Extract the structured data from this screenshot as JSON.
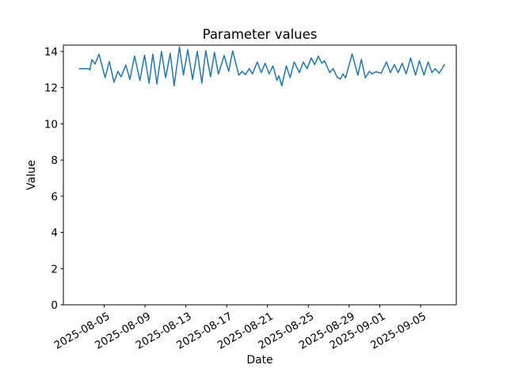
{
  "colors": {
    "background": "#ffffff",
    "axis": "#000000",
    "line": "#1f77b4"
  },
  "chart_data": {
    "type": "line",
    "title": "Parameter values",
    "xlabel": "Date",
    "ylabel": "Value",
    "x_unit": "days since 2025-08-01",
    "xlim": [
      0,
      38.5
    ],
    "ylim": [
      0,
      14.35
    ],
    "grid": false,
    "legend": false,
    "x_ticks": [
      {
        "pos": 4,
        "label": "2025-08-05"
      },
      {
        "pos": 8,
        "label": "2025-08-09"
      },
      {
        "pos": 12,
        "label": "2025-08-13"
      },
      {
        "pos": 16,
        "label": "2025-08-17"
      },
      {
        "pos": 20,
        "label": "2025-08-21"
      },
      {
        "pos": 24,
        "label": "2025-08-25"
      },
      {
        "pos": 28,
        "label": "2025-08-29"
      },
      {
        "pos": 31,
        "label": "2025-09-01"
      },
      {
        "pos": 35,
        "label": "2025-09-05"
      }
    ],
    "y_ticks": [
      {
        "pos": 0,
        "label": "0"
      },
      {
        "pos": 2,
        "label": "2"
      },
      {
        "pos": 4,
        "label": "4"
      },
      {
        "pos": 6,
        "label": "6"
      },
      {
        "pos": 8,
        "label": "8"
      },
      {
        "pos": 10,
        "label": "10"
      },
      {
        "pos": 12,
        "label": "12"
      },
      {
        "pos": 14,
        "label": "14"
      }
    ],
    "series": [
      {
        "name": "Parameter values",
        "color": "#1f77b4",
        "points": [
          [
            1.55,
            13.05
          ],
          [
            2.48,
            13.05
          ],
          [
            2.6,
            12.98
          ],
          [
            2.79,
            13.55
          ],
          [
            3.1,
            13.3
          ],
          [
            3.49,
            13.85
          ],
          [
            4.09,
            12.55
          ],
          [
            4.5,
            13.45
          ],
          [
            4.96,
            12.3
          ],
          [
            5.35,
            12.9
          ],
          [
            5.66,
            12.6
          ],
          [
            6.12,
            13.25
          ],
          [
            6.51,
            12.45
          ],
          [
            6.98,
            13.75
          ],
          [
            7.5,
            12.4
          ],
          [
            7.96,
            13.8
          ],
          [
            8.4,
            12.25
          ],
          [
            8.76,
            13.85
          ],
          [
            9.17,
            12.2
          ],
          [
            9.61,
            14.0
          ],
          [
            10.02,
            12.55
          ],
          [
            10.47,
            13.9
          ],
          [
            10.85,
            12.1
          ],
          [
            11.37,
            14.25
          ],
          [
            11.76,
            12.7
          ],
          [
            12.19,
            14.1
          ],
          [
            12.66,
            12.45
          ],
          [
            13.12,
            14.0
          ],
          [
            13.57,
            12.25
          ],
          [
            13.95,
            14.05
          ],
          [
            14.42,
            12.6
          ],
          [
            14.8,
            13.95
          ],
          [
            15.19,
            12.75
          ],
          [
            15.76,
            13.78
          ],
          [
            16.2,
            12.9
          ],
          [
            16.59,
            14.03
          ],
          [
            17.19,
            12.69
          ],
          [
            17.52,
            12.9
          ],
          [
            17.83,
            12.72
          ],
          [
            18.22,
            13.05
          ],
          [
            18.53,
            12.76
          ],
          [
            18.99,
            13.42
          ],
          [
            19.38,
            12.83
          ],
          [
            19.77,
            13.35
          ],
          [
            20.16,
            12.76
          ],
          [
            20.54,
            13.2
          ],
          [
            20.93,
            12.4
          ],
          [
            21.12,
            12.65
          ],
          [
            21.4,
            12.1
          ],
          [
            21.84,
            13.2
          ],
          [
            22.22,
            12.55
          ],
          [
            22.61,
            13.42
          ],
          [
            23.12,
            12.83
          ],
          [
            23.51,
            13.42
          ],
          [
            23.88,
            13.05
          ],
          [
            24.29,
            13.64
          ],
          [
            24.63,
            13.27
          ],
          [
            24.98,
            13.74
          ],
          [
            25.33,
            13.35
          ],
          [
            25.58,
            13.49
          ],
          [
            26.1,
            12.83
          ],
          [
            26.43,
            13.05
          ],
          [
            26.8,
            12.6
          ],
          [
            27.13,
            12.47
          ],
          [
            27.39,
            12.76
          ],
          [
            27.65,
            12.54
          ],
          [
            28.29,
            13.86
          ],
          [
            28.86,
            12.69
          ],
          [
            29.2,
            13.56
          ],
          [
            29.59,
            12.54
          ],
          [
            29.98,
            12.9
          ],
          [
            30.23,
            12.76
          ],
          [
            30.62,
            12.88
          ],
          [
            31.14,
            12.8
          ],
          [
            31.65,
            13.42
          ],
          [
            32.04,
            12.83
          ],
          [
            32.43,
            13.27
          ],
          [
            32.81,
            12.83
          ],
          [
            33.2,
            13.35
          ],
          [
            33.59,
            12.76
          ],
          [
            34.03,
            13.64
          ],
          [
            34.5,
            12.69
          ],
          [
            34.88,
            13.49
          ],
          [
            35.33,
            12.69
          ],
          [
            35.74,
            13.42
          ],
          [
            36.12,
            12.83
          ],
          [
            36.43,
            13.05
          ],
          [
            36.82,
            12.8
          ],
          [
            37.34,
            13.27
          ]
        ]
      }
    ]
  }
}
